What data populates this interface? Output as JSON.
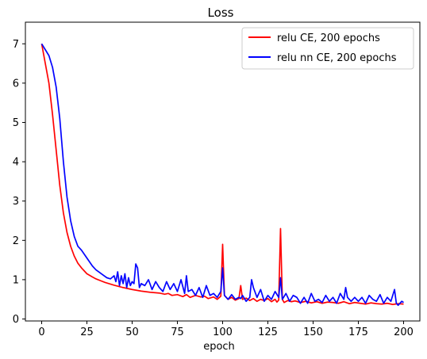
{
  "chart_data": {
    "type": "line",
    "title": "Loss",
    "xlabel": "epoch",
    "ylabel": "",
    "xlim": [
      -9,
      209
    ],
    "ylim": [
      -0.05,
      7.55
    ],
    "xticks": [
      0,
      25,
      50,
      75,
      100,
      125,
      150,
      175,
      200
    ],
    "yticks": [
      0,
      1,
      2,
      3,
      4,
      5,
      6,
      7
    ],
    "grid": false,
    "legend_position": "top-right",
    "colors": {
      "relu_ce": "#ff0000",
      "relu_nn_ce": "#0000ff",
      "relu_ce_raw": "#ffb3b3",
      "relu_nn_ce_raw": "#b3b3ff"
    },
    "series": [
      {
        "name": "relu CE, 200 epochs",
        "color": "#ff0000",
        "x": [
          0,
          2,
          4,
          6,
          8,
          10,
          12,
          14,
          16,
          18,
          20,
          22,
          25,
          28,
          30,
          35,
          40,
          45,
          50,
          55,
          60,
          65,
          68,
          70,
          72,
          75,
          78,
          80,
          82,
          85,
          88,
          90,
          92,
          95,
          97,
          99,
          100,
          101,
          103,
          105,
          107,
          109,
          110,
          111,
          113,
          115,
          117,
          119,
          121,
          123,
          125,
          127,
          129,
          130,
          131,
          132,
          133,
          134,
          136,
          138,
          140,
          143,
          146,
          149,
          152,
          155,
          158,
          161,
          164,
          167,
          170,
          173,
          176,
          179,
          182,
          185,
          188,
          191,
          194,
          197,
          200
        ],
        "y": [
          7.0,
          6.5,
          6.0,
          5.2,
          4.3,
          3.4,
          2.7,
          2.2,
          1.85,
          1.6,
          1.42,
          1.3,
          1.15,
          1.07,
          1.02,
          0.93,
          0.86,
          0.8,
          0.75,
          0.71,
          0.68,
          0.66,
          0.63,
          0.65,
          0.6,
          0.62,
          0.57,
          0.62,
          0.55,
          0.6,
          0.56,
          0.58,
          0.52,
          0.56,
          0.5,
          0.58,
          1.9,
          0.6,
          0.5,
          0.55,
          0.48,
          0.52,
          0.85,
          0.5,
          0.53,
          0.47,
          0.52,
          0.45,
          0.5,
          0.47,
          0.52,
          0.44,
          0.5,
          0.43,
          0.48,
          2.3,
          0.5,
          0.42,
          0.47,
          0.44,
          0.46,
          0.42,
          0.45,
          0.41,
          0.44,
          0.4,
          0.43,
          0.42,
          0.4,
          0.44,
          0.39,
          0.42,
          0.4,
          0.38,
          0.41,
          0.39,
          0.38,
          0.4,
          0.37,
          0.39,
          0.38
        ]
      },
      {
        "name": "relu nn CE, 200 epochs",
        "color": "#0000ff",
        "x": [
          0,
          2,
          4,
          6,
          8,
          10,
          12,
          14,
          16,
          18,
          20,
          22,
          25,
          28,
          30,
          33,
          36,
          38,
          40,
          41,
          42,
          43,
          44,
          45,
          46,
          47,
          48,
          49,
          50,
          51,
          52,
          53,
          54,
          55,
          57,
          59,
          61,
          63,
          65,
          67,
          69,
          71,
          73,
          75,
          77,
          79,
          80,
          81,
          83,
          85,
          87,
          89,
          91,
          93,
          95,
          97,
          99,
          100,
          101,
          103,
          105,
          107,
          109,
          110,
          111,
          113,
          115,
          116,
          117,
          119,
          121,
          123,
          125,
          127,
          129,
          131,
          132,
          133,
          135,
          137,
          139,
          141,
          143,
          145,
          147,
          149,
          151,
          153,
          155,
          157,
          159,
          161,
          163,
          165,
          167,
          168,
          169,
          171,
          173,
          175,
          177,
          179,
          181,
          183,
          185,
          187,
          189,
          191,
          193,
          195,
          196,
          197,
          199,
          200
        ],
        "y": [
          7.0,
          6.85,
          6.7,
          6.4,
          5.9,
          5.1,
          4.0,
          3.1,
          2.5,
          2.1,
          1.85,
          1.75,
          1.55,
          1.35,
          1.25,
          1.15,
          1.05,
          1.02,
          1.1,
          0.95,
          1.2,
          0.85,
          1.1,
          0.9,
          1.15,
          0.8,
          1.05,
          0.85,
          0.95,
          0.9,
          1.4,
          1.3,
          0.8,
          0.9,
          0.85,
          1.0,
          0.75,
          0.95,
          0.8,
          0.7,
          0.95,
          0.75,
          0.9,
          0.7,
          1.0,
          0.65,
          1.1,
          0.7,
          0.75,
          0.6,
          0.8,
          0.55,
          0.85,
          0.6,
          0.65,
          0.55,
          0.7,
          1.3,
          0.6,
          0.5,
          0.62,
          0.5,
          0.55,
          0.52,
          0.6,
          0.45,
          0.55,
          1.0,
          0.8,
          0.55,
          0.75,
          0.45,
          0.6,
          0.5,
          0.7,
          0.55,
          1.05,
          0.5,
          0.65,
          0.45,
          0.6,
          0.55,
          0.4,
          0.55,
          0.4,
          0.65,
          0.45,
          0.5,
          0.42,
          0.6,
          0.45,
          0.55,
          0.4,
          0.65,
          0.5,
          0.8,
          0.55,
          0.45,
          0.55,
          0.45,
          0.55,
          0.4,
          0.6,
          0.5,
          0.45,
          0.62,
          0.4,
          0.55,
          0.45,
          0.75,
          0.4,
          0.35,
          0.45,
          0.42
        ]
      }
    ]
  }
}
